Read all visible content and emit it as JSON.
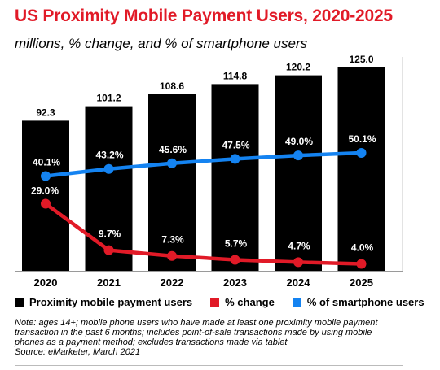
{
  "header": {
    "title": "US Proximity Mobile Payment Users, 2020-2025",
    "subtitle": "millions, % change, and % of smartphone users"
  },
  "chart_data": {
    "type": "bar",
    "categories": [
      "2020",
      "2021",
      "2022",
      "2023",
      "2024",
      "2025"
    ],
    "series": [
      {
        "name": "Proximity mobile payment users",
        "type": "bar",
        "color": "#000000",
        "values": [
          92.3,
          101.2,
          108.6,
          114.8,
          120.2,
          125.0
        ],
        "labels": [
          "92.3",
          "101.2",
          "108.6",
          "114.8",
          "120.2",
          "125.0"
        ]
      },
      {
        "name": "% change",
        "type": "line",
        "color": "#e11a27",
        "values": [
          29.0,
          9.7,
          7.3,
          5.7,
          4.7,
          4.0
        ],
        "labels": [
          "29.0%",
          "9.7%",
          "7.3%",
          "5.7%",
          "4.7%",
          "4.0%"
        ]
      },
      {
        "name": "% of smartphone users",
        "type": "line",
        "color": "#1483f1",
        "values": [
          40.1,
          43.2,
          45.6,
          47.5,
          49.0,
          50.1
        ],
        "labels": [
          "40.1%",
          "43.2%",
          "45.6%",
          "47.5%",
          "49.0%",
          "50.1%"
        ]
      }
    ],
    "legend_position": "bottom"
  },
  "note": "Note: ages 14+; mobile phone users who have made at least one proximity mobile payment transaction in the past 6 months; includes point-of-sale transactions made by using mobile phones as a payment method; excludes transactions made via tablet",
  "source": "Source: eMarketer, March 2021"
}
